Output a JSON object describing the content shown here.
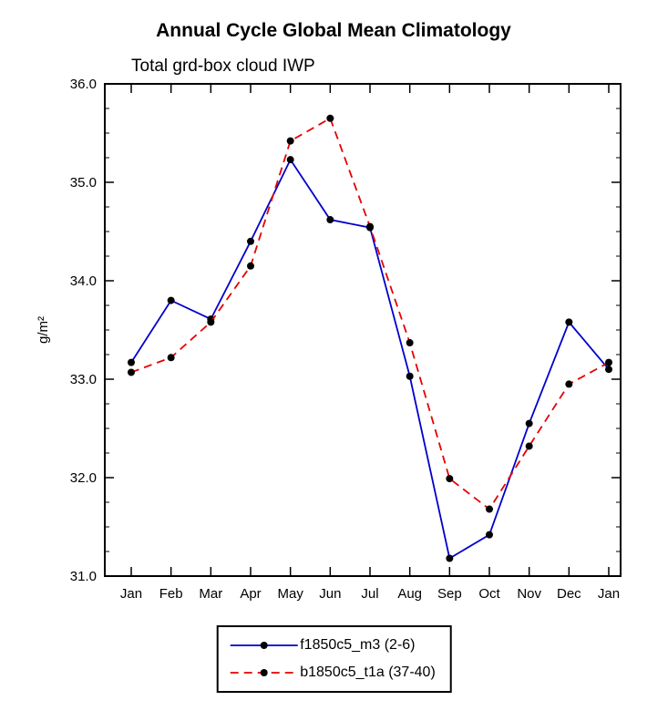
{
  "chart_data": {
    "type": "line",
    "title": "Annual Cycle Global Mean Climatology",
    "subtitle": "Total grd-box cloud IWP",
    "ylabel": "g/m²",
    "xlabel": "",
    "categories": [
      "Jan",
      "Feb",
      "Mar",
      "Apr",
      "May",
      "Jun",
      "Jul",
      "Aug",
      "Sep",
      "Oct",
      "Nov",
      "Dec",
      "Jan"
    ],
    "ylim": [
      31.0,
      36.0
    ],
    "y_major_ticks": [
      31.0,
      32.0,
      33.0,
      34.0,
      35.0,
      36.0
    ],
    "y_minor_step": 0.25,
    "grid": false,
    "legend_position": "bottom",
    "axis_color": "#000000",
    "marker_color": "#000000",
    "series": [
      {
        "name": "f1850c5_m3 (2-6)",
        "color": "#0000cc",
        "style": "solid",
        "marker_color": "#000000",
        "values": [
          33.17,
          33.8,
          33.61,
          34.4,
          35.23,
          34.62,
          34.54,
          33.03,
          31.18,
          31.42,
          32.55,
          33.58,
          33.1
        ]
      },
      {
        "name": "b1850c5_t1a (37-40)",
        "color": "#e60000",
        "style": "dashed",
        "marker_color": "#000000",
        "values": [
          33.07,
          33.22,
          33.58,
          34.15,
          35.42,
          35.65,
          34.55,
          33.37,
          31.99,
          31.68,
          32.32,
          32.95,
          33.17
        ]
      }
    ]
  }
}
